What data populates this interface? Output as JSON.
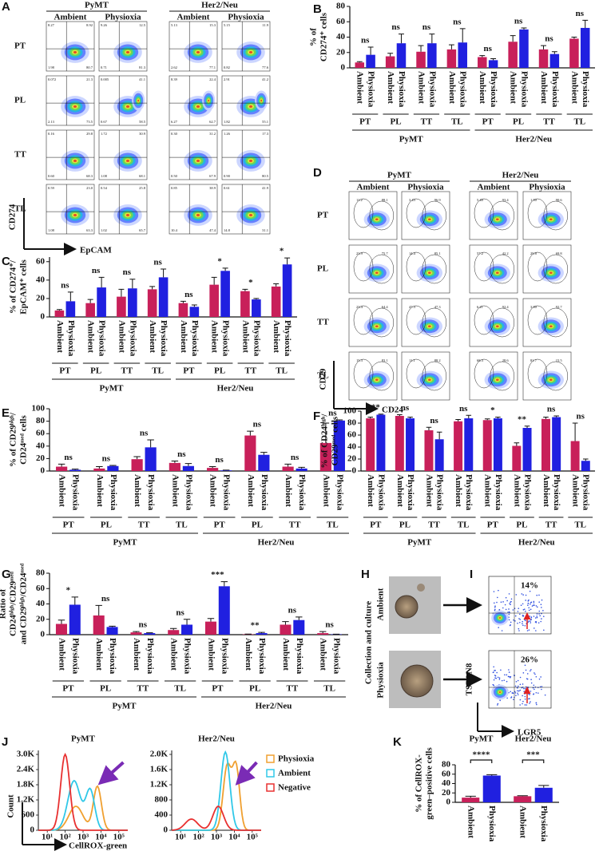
{
  "panels": {
    "labels": [
      "A",
      "B",
      "C",
      "D",
      "E",
      "F",
      "G",
      "H",
      "I",
      "J",
      "K"
    ],
    "A": {
      "groups": [
        "PyMT",
        "Her2/Neu"
      ],
      "conditions": [
        "Ambient",
        "Physioxia",
        "Ambient",
        "Physioxia"
      ],
      "rows": [
        "PT",
        "PL",
        "TT",
        "TL"
      ],
      "y_axis": "CD274",
      "x_axis": "EpCAM",
      "quadrants": [
        [
          [
            "8.27",
            "8.92",
            "1.98",
            "80.7"
          ],
          [
            "9.26",
            "12.5",
            "0.71",
            "81.3"
          ],
          [
            "5.13",
            "15.3",
            "2.62",
            "77.1"
          ],
          [
            "5.15",
            "11.9",
            "0.82",
            "77.6"
          ]
        ],
        [
          [
            "0.072",
            "21.3",
            "2.13",
            "73.5"
          ],
          [
            "0.005",
            "41.1",
            "0.67",
            "58.5"
          ],
          [
            "8.39",
            "22.4",
            "6.27",
            "62.7"
          ],
          [
            "2.91",
            "41.2",
            "1.82",
            "55.1"
          ]
        ],
        [
          [
            "0.16",
            "29.8",
            "0.60",
            "68.3"
          ],
          [
            "1.72",
            "30.9",
            "1.08",
            "68.1"
          ],
          [
            "0.30",
            "31.2",
            "0.50",
            "67.9"
          ],
          [
            "1.26",
            "17.3",
            "0.90",
            "80.5"
          ]
        ],
        [
          [
            "0.59",
            "23.0",
            "1.08",
            "63.3"
          ],
          [
            "0.54",
            "25.8",
            "1.02",
            "65.7"
          ],
          [
            "0.85",
            "38.9",
            "10.4",
            "47.4"
          ],
          [
            "0.61",
            "41.9",
            "14.8",
            "31.1"
          ]
        ]
      ]
    },
    "D": {
      "groups": [
        "PyMT",
        "Her2/Neu"
      ],
      "conditions": [
        "Ambient",
        "Physioxia",
        "Ambient",
        "Physioxia"
      ],
      "rows": [
        "PT",
        "PL",
        "TT",
        "TL"
      ],
      "y_axis": "CD29",
      "x_axis": "CD24",
      "gates": [
        [
          [
            "11.2",
            "88.1"
          ],
          [
            "3.43",
            "96.9"
          ],
          [
            "5.40",
            "93.4"
          ],
          [
            "1.50",
            "90.6"
          ]
        ],
        [
          [
            "23.9",
            "75.7"
          ],
          [
            "14.4",
            "85.1"
          ],
          [
            "57.2",
            "42.2"
          ],
          [
            "29.8",
            "69.8"
          ]
        ],
        [
          [
            "23.4",
            "64.4"
          ],
          [
            "47.3",
            "47.3"
          ],
          [
            "6.21",
            "92.4"
          ],
          [
            "3.80",
            "92.7"
          ]
        ],
        [
          [
            "15.3",
            "83.1"
          ],
          [
            "11.1",
            "88.2"
          ],
          [
            "68.3",
            "28.6"
          ],
          [
            "81.7",
            "15.5"
          ]
        ]
      ]
    },
    "H": {
      "caption": "Collection and culture",
      "conditions": [
        "Ambient",
        "Physioxia"
      ]
    },
    "I": {
      "y_axis": "TSPAN8",
      "x_axis": "LGR5",
      "percents": [
        "14%",
        "26%"
      ]
    },
    "J": {
      "titles": [
        "PyMT",
        "Her2/Neu"
      ],
      "y_axis": "Count",
      "x_axis": "CellROX-green",
      "legend": [
        "Physioxia",
        "Ambient",
        "Negative"
      ],
      "yticks": [
        [
          "3.0K",
          "2.4K",
          "1.8K",
          "1.2K",
          "600",
          "0"
        ],
        [
          "2.0K",
          "1.6K",
          "1.2K",
          "800",
          "400",
          "0"
        ]
      ],
      "xticks": [
        "10¹",
        "10²",
        "10³",
        "10⁴",
        "10⁵"
      ]
    }
  },
  "chart_data": [
    {
      "type": "bar",
      "ylabel": [
        "% of",
        "CD274⁺ cells"
      ],
      "categories": [
        "PT",
        "PL",
        "TT",
        "TL",
        "PT",
        "PL",
        "TT",
        "TL"
      ],
      "groups": [
        "PyMT",
        "Her2/Neu"
      ],
      "series": [
        {
          "name": "Ambient",
          "color": "#c8205a",
          "values": [
            7,
            15,
            21,
            24,
            14,
            34,
            24,
            38
          ],
          "errors": [
            1,
            4,
            8,
            6,
            2,
            8,
            5,
            2
          ]
        },
        {
          "name": "Physioxia",
          "color": "#2020e0",
          "values": [
            17,
            32,
            32,
            33,
            10,
            50,
            18,
            52
          ],
          "errors": [
            10,
            12,
            12,
            18,
            2,
            2,
            3,
            10
          ]
        }
      ],
      "annotations": [
        "ns",
        "ns",
        "ns",
        "ns",
        "ns",
        "ns",
        "ns",
        "ns"
      ],
      "ylim": [
        0,
        80
      ],
      "yticks": [
        0,
        20,
        40,
        60,
        80
      ]
    },
    {
      "type": "bar",
      "ylabel": [
        "% of CD274⁺/",
        "EpCAM⁺ cells"
      ],
      "categories": [
        "PT",
        "PL",
        "TT",
        "TL",
        "PT",
        "PL",
        "TT",
        "TL"
      ],
      "groups": [
        "PyMT",
        "Her2/Neu"
      ],
      "series": [
        {
          "name": "Ambient",
          "color": "#c8205a",
          "values": [
            7,
            15,
            22,
            30,
            15,
            35,
            28,
            33
          ],
          "errors": [
            1,
            4,
            8,
            3,
            2,
            8,
            2,
            3
          ]
        },
        {
          "name": "Physioxia",
          "color": "#2020e0",
          "values": [
            17,
            32,
            31,
            43,
            11,
            50,
            19,
            57
          ],
          "errors": [
            10,
            11,
            10,
            9,
            2,
            3,
            1,
            7
          ]
        }
      ],
      "annotations": [
        "ns",
        "ns",
        "ns",
        "ns",
        "ns",
        "*",
        "*",
        "*"
      ],
      "ylim": [
        0,
        65
      ],
      "yticks": [
        0,
        20,
        40,
        60
      ]
    },
    {
      "type": "bar",
      "ylabel": [
        "% of CD29ʰⁱᵍʰ/",
        "CD24ᵐᵉᵈ cells"
      ],
      "categories": [
        "PT",
        "PL",
        "TT",
        "TL",
        "PT",
        "PL",
        "TT",
        "TL"
      ],
      "groups": [
        "PyMT",
        "Her2/Neu"
      ],
      "series": [
        {
          "name": "Ambient",
          "color": "#c8205a",
          "values": [
            7,
            4,
            19,
            13,
            5,
            57,
            7,
            45
          ],
          "errors": [
            4,
            3,
            4,
            3,
            2,
            7,
            4,
            32
          ]
        },
        {
          "name": "Physioxia",
          "color": "#2020e0",
          "values": [
            2,
            8,
            38,
            8,
            1,
            26,
            4,
            81
          ],
          "errors": [
            1,
            1,
            12,
            4,
            0.5,
            4,
            2,
            1
          ]
        }
      ],
      "annotations": [
        "ns",
        "ns",
        "ns",
        "ns",
        "ns",
        "ns",
        "ns",
        "ns"
      ],
      "ylim": [
        0,
        100
      ],
      "yticks": [
        0,
        20,
        40,
        60,
        80,
        100
      ]
    },
    {
      "type": "bar",
      "ylabel": [
        "% of CD24ʰⁱᵍʰ/",
        "CD29ᵐᵉᵈ cells"
      ],
      "categories": [
        "PT",
        "PL",
        "TT",
        "TL",
        "PT",
        "PL",
        "TT",
        "TL"
      ],
      "groups": [
        "PyMT",
        "Her2/Neu"
      ],
      "series": [
        {
          "name": "Ambient",
          "color": "#c8205a",
          "values": [
            88,
            92,
            68,
            83,
            85,
            42,
            87,
            50
          ],
          "errors": [
            2,
            2,
            5,
            3,
            2,
            5,
            3,
            30
          ]
        },
        {
          "name": "Physioxia",
          "color": "#2020e0",
          "values": [
            94,
            88,
            53,
            88,
            88,
            72,
            90,
            17
          ],
          "errors": [
            1,
            2,
            12,
            5,
            2,
            3,
            2,
            3
          ]
        }
      ],
      "annotations": [
        "**",
        "ns",
        "ns",
        "ns",
        "*",
        "**",
        "ns",
        "ns"
      ],
      "ylim": [
        0,
        100
      ],
      "yticks": [
        0,
        20,
        40,
        60,
        80,
        100
      ]
    },
    {
      "type": "bar",
      "ylabel": [
        "Ratio of",
        "CD24ʰⁱᵍʰ/CD29ᵐᵉᵈ",
        "and CD29ʰⁱᵍʰ/CD24ᵐᵉᵈ"
      ],
      "categories": [
        "PT",
        "PL",
        "TT",
        "TL",
        "PT",
        "PL",
        "TT",
        "TL"
      ],
      "groups": [
        "PyMT",
        "Her2/Neu"
      ],
      "series": [
        {
          "name": "Ambient",
          "color": "#c8205a",
          "values": [
            14,
            25,
            3,
            6,
            17,
            0.5,
            13,
            2
          ],
          "errors": [
            5,
            13,
            1,
            2,
            4,
            0.3,
            4,
            2
          ]
        },
        {
          "name": "Physioxia",
          "color": "#2020e0",
          "values": [
            39,
            10,
            2,
            13,
            63,
            2,
            19,
            0.5
          ],
          "errors": [
            10,
            1,
            0.5,
            7,
            6,
            1,
            4,
            0.2
          ]
        }
      ],
      "annotations": [
        "*",
        "ns",
        "ns",
        "ns",
        "***",
        "**",
        "ns",
        "ns"
      ],
      "ylim": [
        0,
        80
      ],
      "yticks": [
        0,
        20,
        40,
        60,
        80
      ]
    },
    {
      "type": "bar",
      "ylabel": [
        "% of  CellROX-",
        "green–positive cells"
      ],
      "categories": [
        "PyMT",
        "Her2/Neu"
      ],
      "series": [
        {
          "name": "Ambient",
          "color": "#c8205a",
          "values": [
            10,
            13
          ],
          "errors": [
            3,
            1
          ]
        },
        {
          "name": "Physioxia",
          "color": "#2020e0",
          "values": [
            57,
            31
          ],
          "errors": [
            2,
            5
          ]
        }
      ],
      "annotations": [
        "****",
        "***"
      ],
      "ylim": [
        0,
        80
      ],
      "yticks": [
        0,
        20,
        40,
        60,
        80
      ]
    }
  ]
}
